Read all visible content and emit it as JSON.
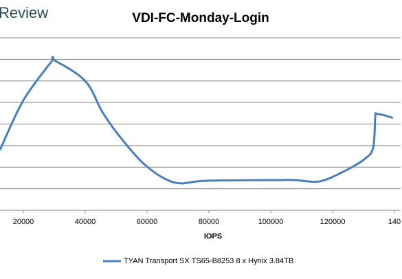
{
  "watermark": "Review",
  "chart_data": {
    "type": "line",
    "title": "VDI-FC-Monday-Login",
    "xlabel": "IOPS",
    "x": [
      12444,
      20000,
      29111,
      30000,
      40000,
      45800,
      52400,
      60200,
      69100,
      79100,
      101300,
      108000,
      115800,
      123600,
      130200,
      133100,
      133800,
      134200,
      136900,
      139500
    ],
    "series": [
      {
        "name": "TYAN Transport SX TS65-B8253 8 x Hynix 3.84TB",
        "color": "#4a7ebb",
        "values": [
          2.8,
          5.1,
          6.9,
          6.96,
          6.0,
          4.5,
          3.2,
          2.0,
          1.28,
          1.37,
          1.4,
          1.4,
          1.34,
          1.8,
          2.36,
          2.9,
          4.35,
          4.47,
          4.4,
          4.28
        ]
      }
    ],
    "xlim": [
      12444,
      142000
    ],
    "xticks": [
      20000,
      40000,
      60000,
      80000,
      100000,
      120000,
      {
        "value": 140000,
        "label": "140"
      }
    ],
    "ylim": [
      0,
      8
    ],
    "ygrid": [
      1,
      2,
      3,
      4,
      5,
      6,
      7,
      8
    ],
    "grid": true,
    "legend": "bottom"
  }
}
